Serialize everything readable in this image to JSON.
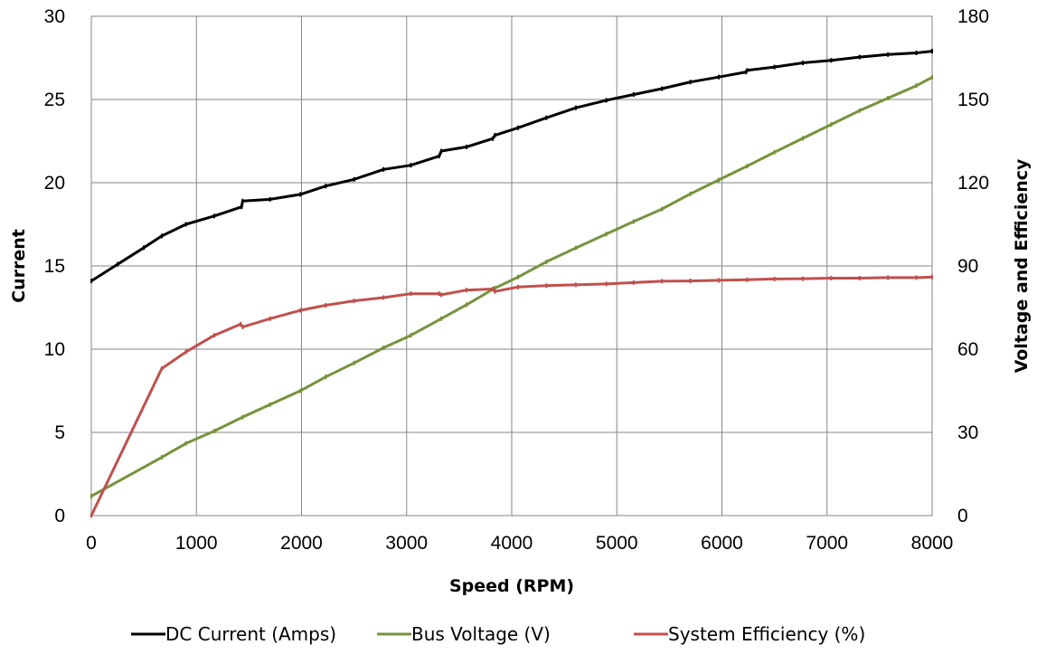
{
  "chart_data": {
    "type": "line",
    "xlabel": "Speed (RPM)",
    "ylabel": "Current",
    "y2label": "Voltage and Efficiency",
    "xlim": [
      0,
      8000
    ],
    "ylim": [
      0,
      30
    ],
    "y2lim": [
      0,
      180
    ],
    "xticks": [
      0,
      1000,
      2000,
      3000,
      4000,
      5000,
      6000,
      7000,
      8000
    ],
    "yticks": [
      0,
      5,
      10,
      15,
      20,
      25,
      30
    ],
    "y2ticks": [
      0,
      30,
      60,
      90,
      120,
      150,
      180
    ],
    "grid": true,
    "legend_position": "bottom",
    "series": [
      {
        "name": "DC Current (Amps)",
        "axis": "left",
        "color": "#000000",
        "x": [
          0,
          250,
          500,
          670,
          900,
          1170,
          1430,
          1440,
          1700,
          1990,
          2230,
          2500,
          2780,
          3040,
          3310,
          3330,
          3570,
          3820,
          3840,
          4060,
          4330,
          4610,
          4900,
          5160,
          5430,
          5700,
          5970,
          6230,
          6240,
          6500,
          6770,
          7040,
          7310,
          7580,
          7850,
          8000
        ],
        "y": [
          14.1,
          15.1,
          16.1,
          16.8,
          17.5,
          18.0,
          18.55,
          18.9,
          19.0,
          19.3,
          19.8,
          20.2,
          20.8,
          21.05,
          21.6,
          21.9,
          22.15,
          22.65,
          22.85,
          23.3,
          23.9,
          24.5,
          24.95,
          25.3,
          25.65,
          26.05,
          26.35,
          26.65,
          26.75,
          26.95,
          27.2,
          27.35,
          27.55,
          27.7,
          27.8,
          27.9
        ]
      },
      {
        "name": "Bus Voltage (V)",
        "axis": "right",
        "color": "#77933c",
        "x": [
          0,
          670,
          900,
          1170,
          1440,
          1700,
          1990,
          2230,
          2500,
          2780,
          3040,
          3330,
          3570,
          3840,
          4060,
          4330,
          4610,
          4900,
          5160,
          5430,
          5700,
          5970,
          6240,
          6500,
          6770,
          7040,
          7310,
          7580,
          7850,
          8000
        ],
        "y": [
          7,
          21,
          26,
          30.5,
          35.5,
          40,
          45,
          50,
          55,
          60.5,
          65,
          71,
          76,
          82,
          86,
          91.5,
          96.5,
          101.5,
          106,
          110.5,
          116,
          121,
          126,
          131,
          136,
          141,
          146,
          150.5,
          155,
          158
        ]
      },
      {
        "name": "System Efficiency (%)",
        "axis": "right",
        "color": "#c0504d",
        "x": [
          0,
          670,
          900,
          1170,
          1420,
          1440,
          1700,
          1990,
          2230,
          2500,
          2780,
          3040,
          3310,
          3330,
          3570,
          3820,
          3840,
          4060,
          4330,
          4610,
          4900,
          5160,
          5430,
          5700,
          5970,
          6240,
          6500,
          6770,
          7040,
          7310,
          7580,
          7850,
          8000
        ],
        "y": [
          0,
          53,
          59,
          65,
          69,
          68,
          71,
          74,
          75.8,
          77.4,
          78.6,
          80,
          80,
          79.6,
          81.3,
          81.7,
          80.8,
          82.4,
          82.9,
          83.2,
          83.5,
          84,
          84.5,
          84.6,
          84.8,
          85,
          85.3,
          85.4,
          85.6,
          85.6,
          85.8,
          85.8,
          86
        ]
      }
    ]
  }
}
